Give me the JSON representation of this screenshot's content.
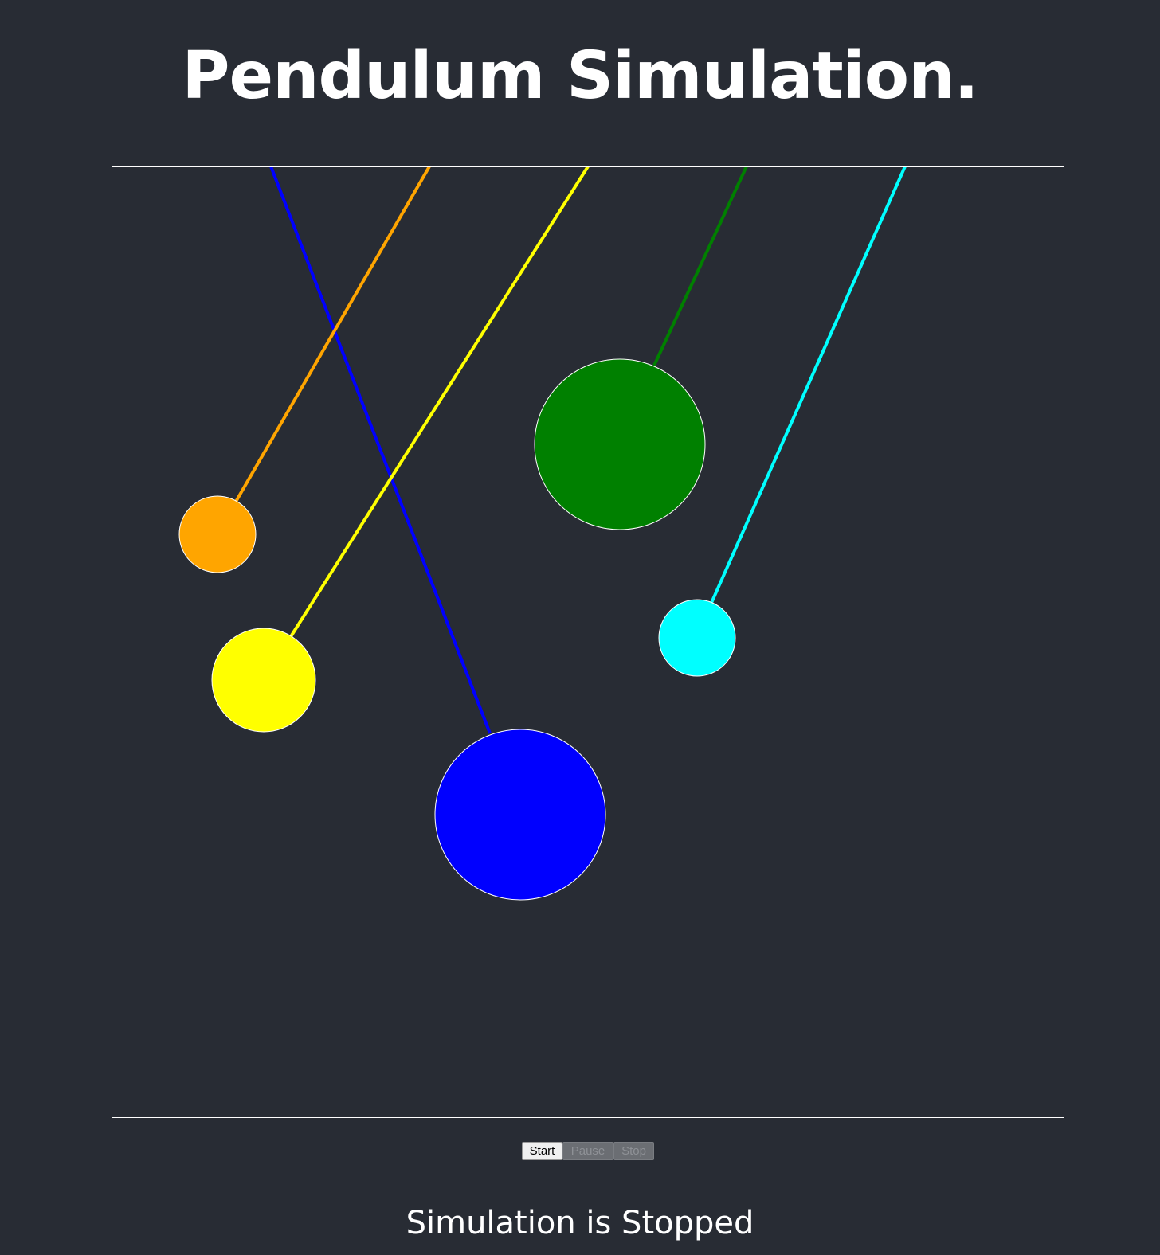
{
  "page": {
    "title": "Pendulum Simulation.",
    "status": "Simulation is Stopped"
  },
  "controls": {
    "start_label": "Start",
    "pause_label": "Pause",
    "stop_label": "Stop"
  },
  "colors": {
    "background": "#282c34",
    "border": "#ffffff",
    "bob_outline": "#ffffff"
  },
  "pendulums": [
    {
      "name": "blue",
      "color": "#0000ff"
    },
    {
      "name": "orange",
      "color": "#ffa500"
    },
    {
      "name": "yellow",
      "color": "#ffff00"
    },
    {
      "name": "green",
      "color": "#008000"
    },
    {
      "name": "cyan",
      "color": "#00ffff"
    }
  ]
}
